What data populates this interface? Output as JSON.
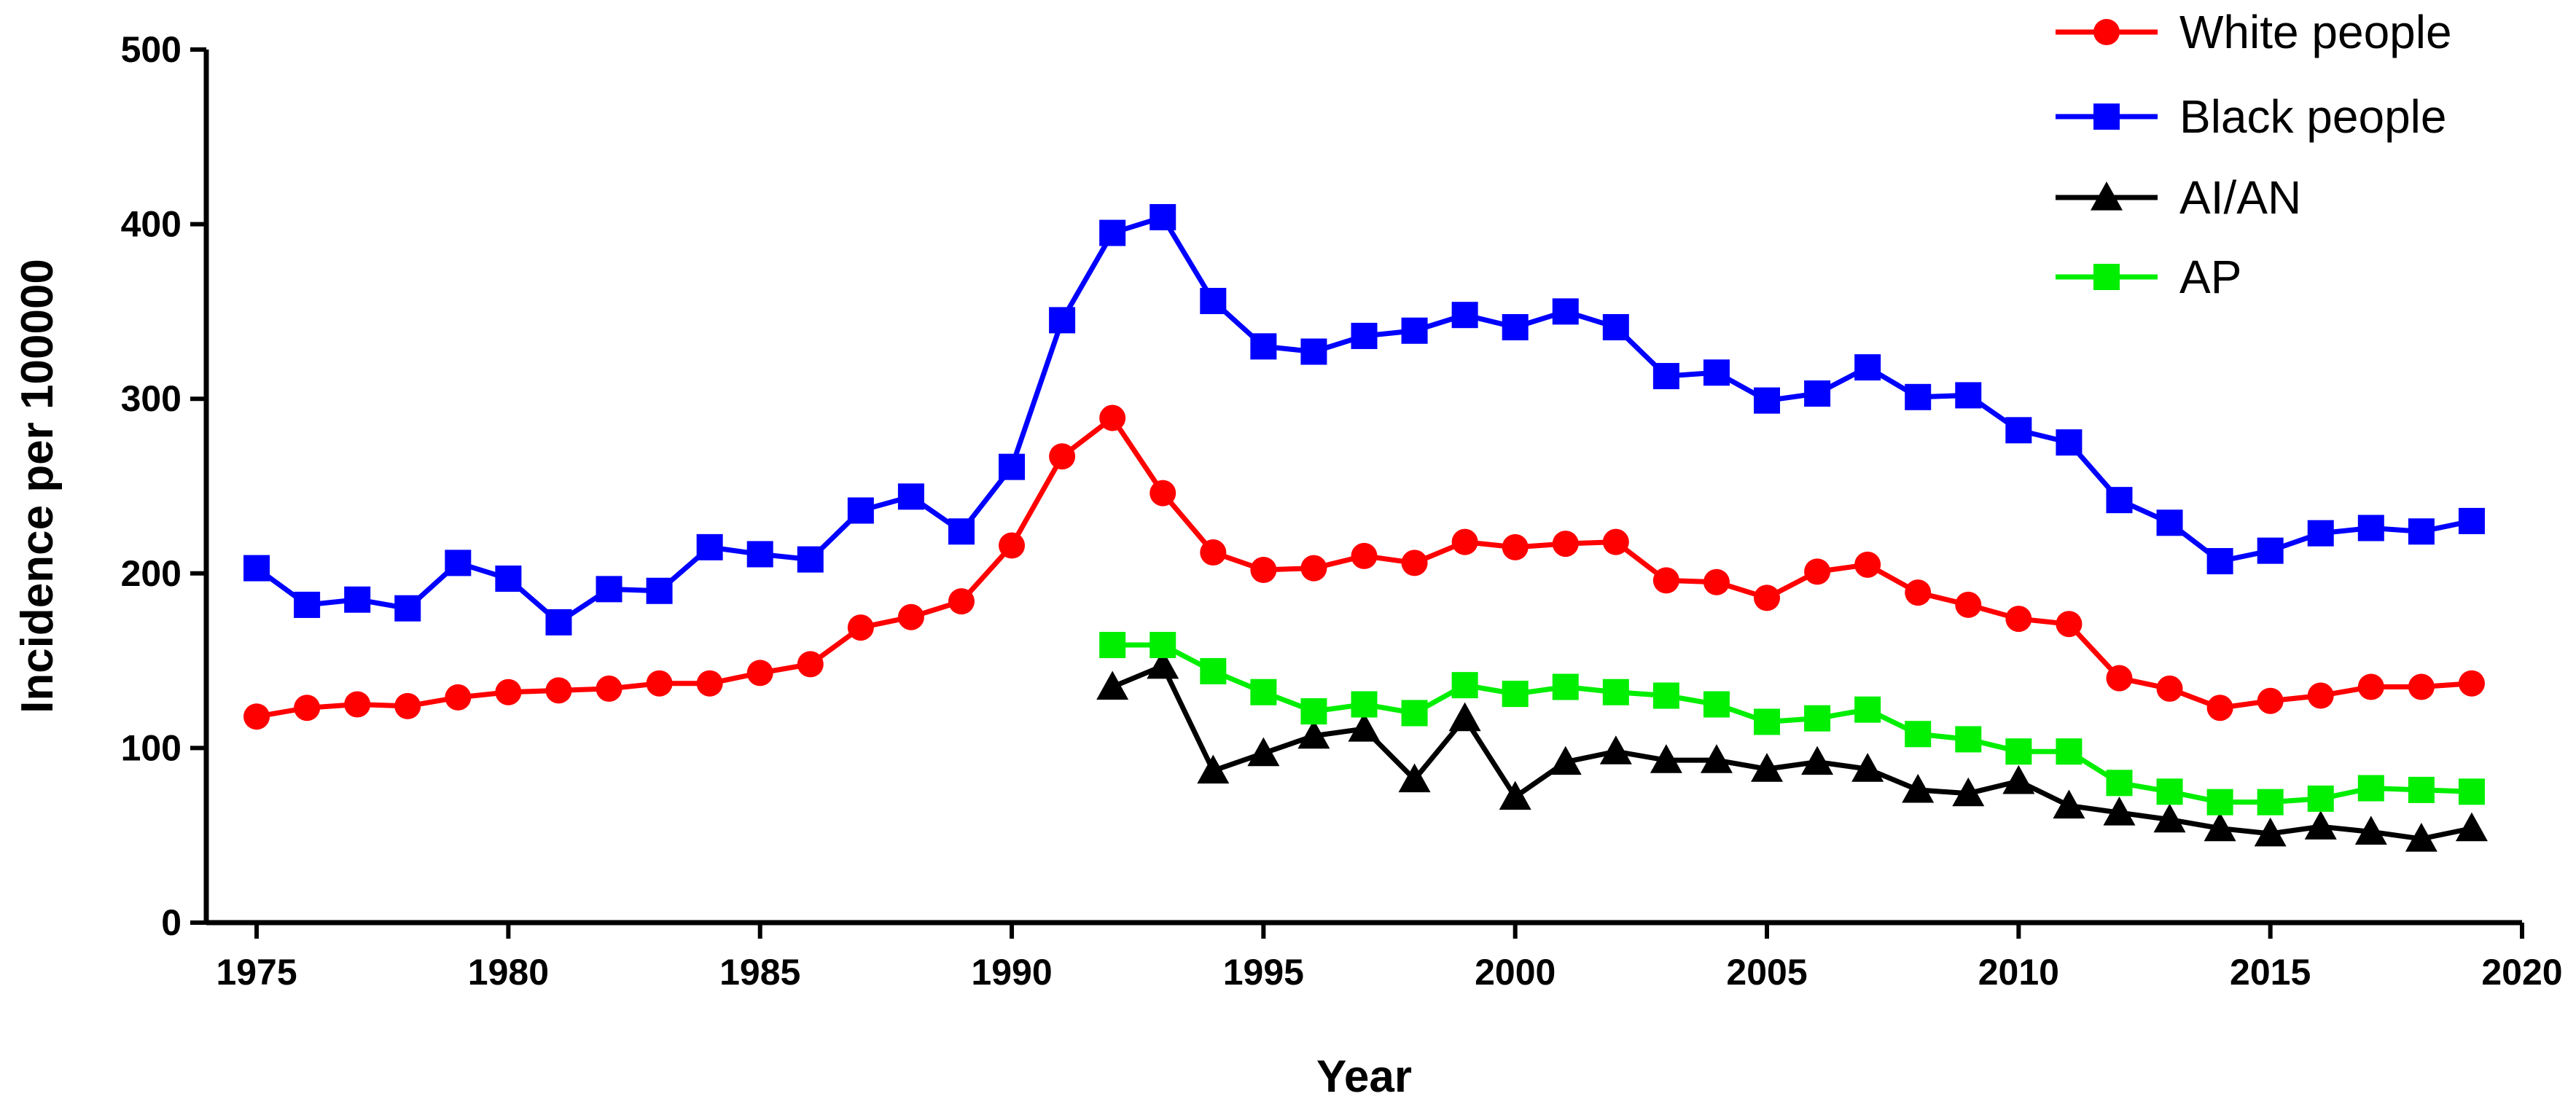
{
  "chart_data": {
    "type": "line",
    "title": "",
    "xlabel": "Year",
    "ylabel": "Incidence per 100000",
    "xlim": [
      1974,
      2020
    ],
    "ylim": [
      0,
      500
    ],
    "xticks": [
      1975,
      1980,
      1985,
      1990,
      1995,
      2000,
      2005,
      2010,
      2015,
      2020
    ],
    "yticks": [
      0,
      100,
      200,
      300,
      400,
      500
    ],
    "grid": false,
    "legend_position": "top-right",
    "series": [
      {
        "name": "White people",
        "color": "#ff0000",
        "marker": "circle",
        "x": [
          1975,
          1976,
          1977,
          1978,
          1979,
          1980,
          1981,
          1982,
          1983,
          1984,
          1985,
          1986,
          1987,
          1988,
          1989,
          1990,
          1991,
          1992,
          1993,
          1994,
          1995,
          1996,
          1997,
          1998,
          1999,
          2000,
          2001,
          2002,
          2003,
          2004,
          2005,
          2006,
          2007,
          2008,
          2009,
          2010,
          2011,
          2012,
          2013,
          2014,
          2015,
          2016,
          2017,
          2018,
          2019
        ],
        "values": [
          118,
          123,
          125,
          124,
          129,
          132,
          133,
          134,
          137,
          137,
          143,
          148,
          169,
          175,
          184,
          216,
          267,
          289,
          246,
          212,
          202,
          203,
          210,
          206,
          218,
          215,
          217,
          218,
          196,
          195,
          186,
          201,
          205,
          189,
          182,
          174,
          171,
          140,
          134,
          123,
          127,
          130,
          135,
          135,
          137
        ]
      },
      {
        "name": "Black people",
        "color": "#0000ff",
        "marker": "square",
        "x": [
          1975,
          1976,
          1977,
          1978,
          1979,
          1980,
          1981,
          1982,
          1983,
          1984,
          1985,
          1986,
          1987,
          1988,
          1989,
          1990,
          1991,
          1992,
          1993,
          1994,
          1995,
          1996,
          1997,
          1998,
          1999,
          2000,
          2001,
          2002,
          2003,
          2004,
          2005,
          2006,
          2007,
          2008,
          2009,
          2010,
          2011,
          2012,
          2013,
          2014,
          2015,
          2016,
          2017,
          2018,
          2019
        ],
        "values": [
          203,
          182,
          185,
          180,
          206,
          197,
          172,
          191,
          190,
          215,
          211,
          208,
          236,
          244,
          224,
          261,
          345,
          395,
          404,
          356,
          330,
          327,
          336,
          339,
          348,
          341,
          350,
          341,
          313,
          315,
          299,
          303,
          318,
          301,
          302,
          282,
          275,
          242,
          229,
          207,
          213,
          223,
          226,
          224,
          230
        ]
      },
      {
        "name": "AI/AN",
        "color": "#000000",
        "marker": "triangle",
        "x": [
          1992,
          1993,
          1994,
          1995,
          1996,
          1997,
          1998,
          1999,
          2000,
          2001,
          2002,
          2003,
          2004,
          2005,
          2006,
          2007,
          2008,
          2009,
          2010,
          2011,
          2012,
          2013,
          2014,
          2015,
          2016,
          2017,
          2018,
          2019
        ],
        "values": [
          135,
          147,
          87,
          97,
          107,
          111,
          82,
          117,
          72,
          92,
          98,
          93,
          93,
          88,
          92,
          88,
          76,
          74,
          81,
          67,
          63,
          59,
          54,
          51,
          55,
          52,
          48,
          54
        ]
      },
      {
        "name": "AP",
        "color": "#00ee00",
        "marker": "square",
        "x": [
          1992,
          1993,
          1994,
          1995,
          1996,
          1997,
          1998,
          1999,
          2000,
          2001,
          2002,
          2003,
          2004,
          2005,
          2006,
          2007,
          2008,
          2009,
          2010,
          2011,
          2012,
          2013,
          2014,
          2015,
          2016,
          2017,
          2018,
          2019
        ],
        "values": [
          159,
          159,
          144,
          132,
          121,
          125,
          120,
          136,
          131,
          135,
          132,
          130,
          125,
          115,
          117,
          122,
          108,
          105,
          98,
          98,
          80,
          75,
          69,
          69,
          71,
          77,
          76,
          75
        ]
      }
    ]
  }
}
